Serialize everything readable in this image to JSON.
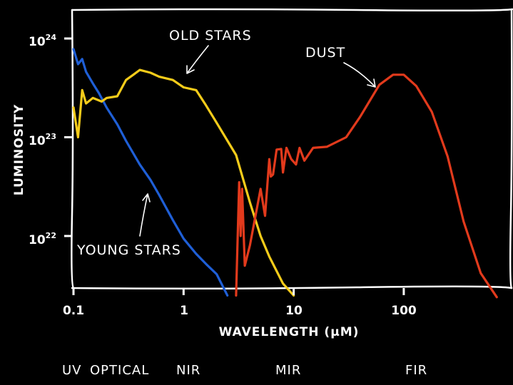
{
  "chart_data": {
    "type": "line",
    "title": "",
    "xlabel": "WAVELENGTH (μM)",
    "ylabel": "LUMINOSITY",
    "x_scale": "log",
    "y_scale": "log",
    "xlim": [
      0.1,
      800
    ],
    "ylim": [
      2.5e+21,
      2.2e+24
    ],
    "grid": false,
    "x_ticks": [
      {
        "value": 0.1,
        "label": "0.1"
      },
      {
        "value": 1,
        "label": "1"
      },
      {
        "value": 10,
        "label": "10"
      },
      {
        "value": 100,
        "label": "100"
      }
    ],
    "y_ticks": [
      {
        "value": 1e+22,
        "base": "10",
        "exp": "22"
      },
      {
        "value": 1e+23,
        "base": "10",
        "exp": "23"
      },
      {
        "value": 1e+24,
        "base": "10",
        "exp": "24"
      }
    ],
    "series": [
      {
        "name": "YOUNG STARS",
        "color": "#1f5fd6",
        "x": [
          0.1,
          0.11,
          0.12,
          0.13,
          0.15,
          0.17,
          0.2,
          0.25,
          0.3,
          0.4,
          0.5,
          0.6,
          0.8,
          1.0,
          1.3,
          1.6,
          2.0,
          2.5
        ],
        "y": [
          7.8e+23,
          5.5e+23,
          6.2e+23,
          4.6e+23,
          3.5e+23,
          2.8e+23,
          2e+23,
          1.35e+23,
          9.2e+22,
          5.3e+22,
          3.7e+22,
          2.6e+22,
          1.45e+22,
          9.4e+21,
          6.6e+21,
          5.2e+21,
          4.1e+21,
          2.5e+21
        ]
      },
      {
        "name": "OLD STARS",
        "color": "#f5cc1a",
        "x": [
          0.1,
          0.11,
          0.12,
          0.13,
          0.15,
          0.18,
          0.2,
          0.25,
          0.3,
          0.35,
          0.4,
          0.5,
          0.6,
          0.8,
          1.0,
          1.3,
          1.6,
          2.0,
          3.0,
          4.0,
          5.0,
          6.0,
          8.0,
          10.0
        ],
        "y": [
          2e+23,
          1e+23,
          3e+23,
          2.2e+23,
          2.5e+23,
          2.3e+23,
          2.5e+23,
          2.6e+23,
          3.8e+23,
          4.3e+23,
          4.8e+23,
          4.5e+23,
          4.1e+23,
          3.8e+23,
          3.2e+23,
          3e+23,
          2.1e+23,
          1.4e+23,
          6.6e+22,
          2.2e+22,
          1e+22,
          6.2e+21,
          3.3e+21,
          2.5e+21
        ]
      },
      {
        "name": "DUST",
        "color": "#e23a1c",
        "x": [
          3.0,
          3.2,
          3.3,
          3.4,
          3.6,
          4.0,
          4.5,
          5.0,
          5.5,
          6.0,
          6.2,
          6.5,
          7.0,
          7.7,
          8.0,
          8.6,
          9.5,
          10.5,
          11.3,
          12.5,
          15,
          20,
          30,
          40,
          60,
          80,
          100,
          130,
          180,
          250,
          350,
          500,
          700
        ],
        "y": [
          2.5e+21,
          3.5e+22,
          1e+22,
          3e+22,
          5e+21,
          8e+21,
          1.6e+22,
          3e+22,
          1.6e+22,
          6e+22,
          4e+22,
          4.2e+22,
          7.5e+22,
          7.6e+22,
          4.4e+22,
          7.8e+22,
          6e+22,
          5.3e+22,
          7.8e+22,
          5.8e+22,
          7.8e+22,
          8e+22,
          1e+23,
          1.6e+23,
          3.4e+23,
          4.3e+23,
          4.3e+23,
          3.3e+23,
          1.8e+23,
          6.4e+22,
          1.4e+22,
          4.2e+21,
          2.4e+21
        ]
      }
    ],
    "annotations": [
      {
        "text": "OLD STARS",
        "target": "OLD STARS"
      },
      {
        "text": "DUST",
        "target": "DUST"
      },
      {
        "text": "YOUNG STARS",
        "target": "YOUNG STARS"
      }
    ],
    "wavelength_bands": [
      "UV",
      "OPTICAL",
      "NIR",
      "MIR",
      "FIR"
    ]
  }
}
